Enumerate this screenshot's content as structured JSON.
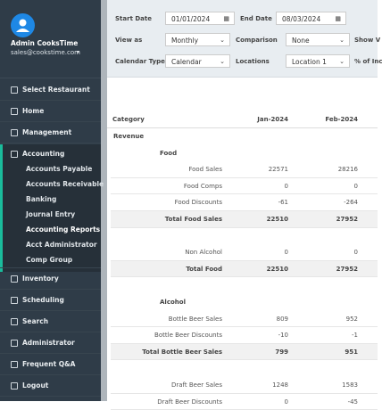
{
  "sidebar": {
    "user": {
      "name": "Admin CooksTime",
      "email": "sales@cookstime.com"
    },
    "menu": [
      {
        "label": "Select Restaurant"
      },
      {
        "label": "Home"
      },
      {
        "label": "Management"
      },
      {
        "label": "Accounting",
        "children": [
          "Accounts Payable",
          "Accounts Receivable",
          "Banking",
          "Journal Entry",
          "Accounting Reports",
          "Acct Administrator",
          "Comp Group"
        ]
      },
      {
        "label": "Inventory"
      },
      {
        "label": "Scheduling"
      },
      {
        "label": "Search"
      },
      {
        "label": "Administrator"
      },
      {
        "label": "Frequent Q&A"
      },
      {
        "label": "Logout"
      }
    ]
  },
  "filters": [
    [
      {
        "label": "Start Date",
        "value": "01/01/2024"
      },
      {
        "label": "End Date",
        "value": "08/03/2024"
      }
    ],
    [
      {
        "label": "View as",
        "value": "Monthly"
      },
      {
        "label": "Comparison",
        "value": "None"
      },
      {
        "label": "Show V"
      }
    ],
    [
      {
        "label": "Calendar Type",
        "value": "Calendar"
      },
      {
        "label": "Locations",
        "value": "Location 1"
      },
      {
        "label": "% of Inc"
      }
    ]
  ],
  "table": {
    "headers": [
      "Category",
      "Jan-2024",
      "Feb-2024"
    ],
    "rows": [
      {
        "heading": "Revenue"
      },
      {
        "group": "Food"
      },
      {
        "item": "Food Sales",
        "values": [
          22571,
          28216
        ]
      },
      {
        "item": "Food Comps",
        "values": [
          0,
          0
        ]
      },
      {
        "item": "Food Discounts",
        "values": [
          -61,
          -264
        ]
      },
      {
        "total": "Total Food Sales",
        "values": [
          22510,
          27952
        ]
      },
      {
        "item": "Non Alcohol",
        "values": [
          0,
          0
        ]
      },
      {
        "total": "Total Food",
        "values": [
          22510,
          27952
        ]
      },
      {
        "group": "Alcohol"
      },
      {
        "item": "Bottle Beer Sales",
        "values": [
          809,
          952
        ]
      },
      {
        "item": "Bottle Beer Discounts",
        "values": [
          -10,
          -1
        ]
      },
      {
        "total": "Total Bottle Beer Sales",
        "values": [
          799,
          951
        ]
      },
      {
        "item": "Draft Beer Sales",
        "values": [
          1248,
          1583
        ]
      },
      {
        "item": "Draft Beer Discounts",
        "values": [
          0,
          -45
        ]
      }
    ]
  }
}
